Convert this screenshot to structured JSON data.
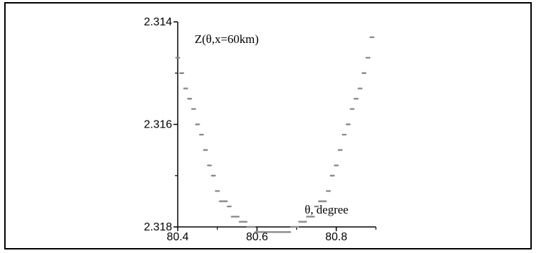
{
  "chart_data": {
    "type": "scatter",
    "title": "",
    "xlabel": "",
    "ylabel": "",
    "annotations": {
      "top_left": "Z(θ,x=60km)",
      "bottom_right": "θ, degree"
    },
    "x_ticks": [
      "80.4",
      "80.6",
      "80.8"
    ],
    "y_ticks": [
      "2.314",
      "2.316",
      "2.318"
    ],
    "xlim": [
      80.4,
      80.9
    ],
    "ylim": [
      2.318,
      2.314
    ],
    "y_inverted": true,
    "grid": false,
    "series": [
      {
        "marker_color": "#8a8a8a",
        "points": [
          [
            80.4,
            2.3147
          ],
          [
            80.41,
            2.315
          ],
          [
            80.42,
            2.3153
          ],
          [
            80.43,
            2.3155
          ],
          [
            80.44,
            2.3157
          ],
          [
            80.45,
            2.316
          ],
          [
            80.46,
            2.3162
          ],
          [
            80.47,
            2.3165
          ],
          [
            80.48,
            2.3168
          ],
          [
            80.49,
            2.317
          ],
          [
            80.5,
            2.3173
          ],
          [
            80.51,
            2.3175
          ],
          [
            80.52,
            2.3175
          ],
          [
            80.53,
            2.3176
          ],
          [
            80.54,
            2.3178
          ],
          [
            80.55,
            2.3178
          ],
          [
            80.56,
            2.3179
          ],
          [
            80.57,
            2.3179
          ],
          [
            80.58,
            2.318
          ],
          [
            80.59,
            2.318
          ],
          [
            80.6,
            2.3181
          ],
          [
            80.61,
            2.3181
          ],
          [
            80.62,
            2.3181
          ],
          [
            80.63,
            2.3181
          ],
          [
            80.64,
            2.3181
          ],
          [
            80.65,
            2.3181
          ],
          [
            80.66,
            2.3181
          ],
          [
            80.67,
            2.3181
          ],
          [
            80.68,
            2.3181
          ],
          [
            80.69,
            2.318
          ],
          [
            80.7,
            2.318
          ],
          [
            80.71,
            2.3179
          ],
          [
            80.72,
            2.3179
          ],
          [
            80.73,
            2.3178
          ],
          [
            80.74,
            2.3178
          ],
          [
            80.75,
            2.3176
          ],
          [
            80.76,
            2.3175
          ],
          [
            80.77,
            2.3175
          ],
          [
            80.78,
            2.3173
          ],
          [
            80.79,
            2.317
          ],
          [
            80.8,
            2.3168
          ],
          [
            80.81,
            2.3165
          ],
          [
            80.82,
            2.3162
          ],
          [
            80.83,
            2.316
          ],
          [
            80.84,
            2.3157
          ],
          [
            80.85,
            2.3155
          ],
          [
            80.86,
            2.3153
          ],
          [
            80.87,
            2.315
          ],
          [
            80.88,
            2.3147
          ],
          [
            80.89,
            2.3143
          ]
        ]
      }
    ]
  }
}
